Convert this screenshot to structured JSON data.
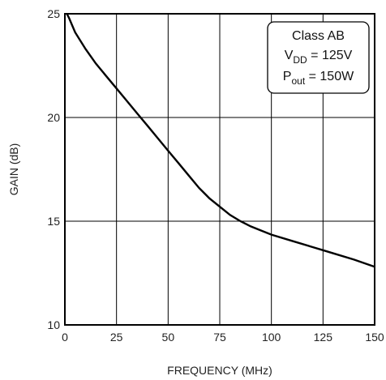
{
  "chart_data": {
    "type": "line",
    "title": "",
    "xlabel": "FREQUENCY (MHz)",
    "ylabel": "GAIN (dB)",
    "xlim": [
      0,
      150
    ],
    "ylim": [
      10,
      25
    ],
    "xticks": [
      0,
      25,
      50,
      75,
      100,
      125,
      150
    ],
    "yticks": [
      10,
      15,
      20,
      25
    ],
    "grid": true,
    "legend_position": "top-right",
    "annotation": {
      "line1": "Class AB",
      "vdd_main": "V",
      "vdd_sub": "DD",
      "vdd_rest": " = 125V",
      "pout_main": "P",
      "pout_sub": "out",
      "pout_rest": " = 150W"
    },
    "series": [
      {
        "x": [
          1,
          2,
          5,
          10,
          15,
          20,
          25,
          30,
          35,
          40,
          45,
          50,
          55,
          60,
          65,
          70,
          75,
          80,
          85,
          90,
          95,
          100,
          110,
          120,
          125,
          130,
          140,
          150
        ],
        "y": [
          25,
          24.8,
          24.1,
          23.3,
          22.6,
          22.0,
          21.4,
          20.8,
          20.2,
          19.6,
          19.0,
          18.4,
          17.8,
          17.2,
          16.6,
          16.1,
          15.7,
          15.3,
          15.0,
          14.75,
          14.55,
          14.35,
          14.05,
          13.75,
          13.6,
          13.45,
          13.15,
          12.8
        ]
      }
    ],
    "colors": {
      "line": "#000000",
      "grid": "#000000"
    }
  }
}
